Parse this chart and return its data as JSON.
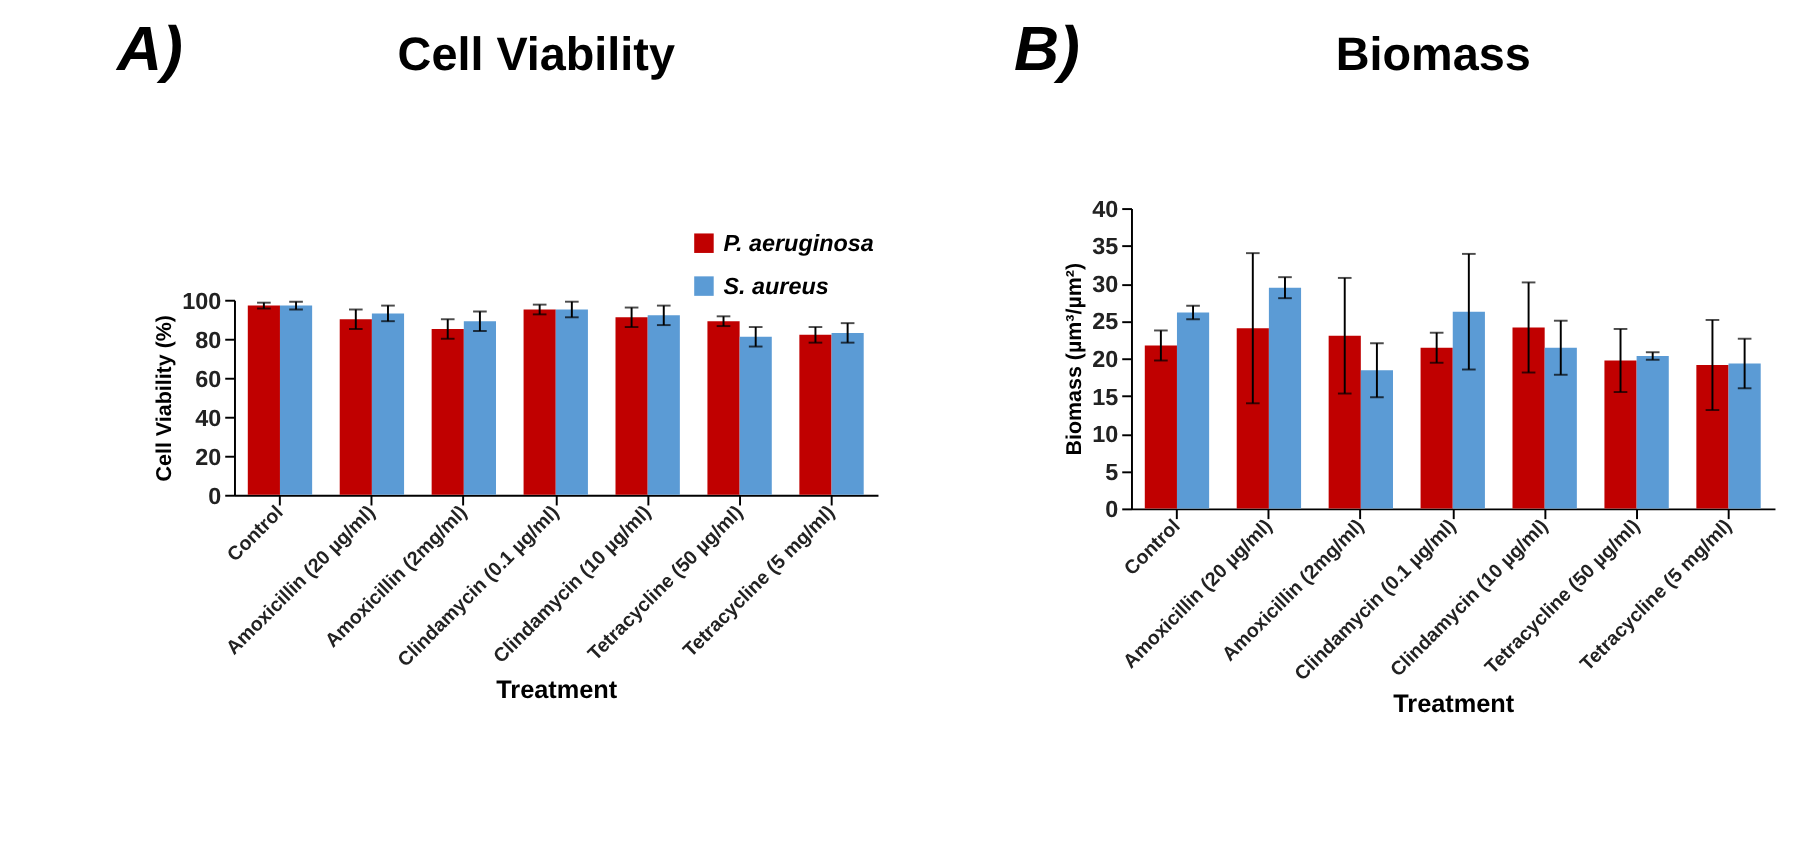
{
  "chart_data": [
    {
      "type": "bar",
      "title": "Cell Viability",
      "annotations": [
        "A)"
      ],
      "xlabel": "Treatment",
      "ylabel": "Cell Viability (%)",
      "categories": [
        "Control",
        "Amoxicillin (20 µg/ml)",
        "Amoxicillin (2mg/ml)",
        "Clindamycin (0.1 µg/ml)",
        "Clindamycin (10 µg/ml)",
        "Tetracycline (50 µg/ml)",
        "Tetracycline (5 mg/ml)"
      ],
      "series": [
        {
          "name": "P. aeruginosa",
          "color": "#c00000",
          "values": [
            97,
            90,
            85,
            95,
            91,
            89,
            82
          ],
          "errors": [
            1.5,
            5,
            5,
            2.5,
            5,
            2.5,
            4
          ]
        },
        {
          "name": "S. aureus",
          "color": "#5b9bd5",
          "values": [
            97,
            93,
            89,
            95,
            92,
            81,
            83
          ],
          "errors": [
            2,
            4,
            5,
            4,
            5,
            5,
            5
          ]
        }
      ],
      "ylim": [
        0,
        100
      ],
      "yticks": [
        0,
        20,
        40,
        60,
        80,
        100
      ],
      "grid": false,
      "legend": "top right"
    },
    {
      "type": "bar",
      "title": "Biomass",
      "annotations": [
        "B)"
      ],
      "xlabel": "Treatment",
      "ylabel": "Biomass (µm³/µm²)",
      "categories": [
        "Control",
        "Amoxicillin (20 µg/ml)",
        "Amoxicillin (2mg/ml)",
        "Clindamycin (0.1 µg/ml)",
        "Clindamycin (10 µg/ml)",
        "Tetracycline (50 µg/ml)",
        "Tetracycline (5 mg/ml)"
      ],
      "series": [
        {
          "color": "#c00000",
          "values": [
            21.7,
            24,
            23,
            21.4,
            24.1,
            19.7,
            19.1
          ],
          "errors": [
            2,
            10,
            7.7,
            2,
            6,
            4.2,
            6
          ]
        },
        {
          "color": "#5b9bd5",
          "values": [
            26.1,
            29.4,
            18.4,
            26.2,
            21.4,
            20.3,
            19.3
          ],
          "errors": [
            0.9,
            1.4,
            3.6,
            7.7,
            3.6,
            0.5,
            3.3
          ]
        }
      ],
      "ylim": [
        0,
        40
      ],
      "yticks": [
        0,
        5,
        10,
        15,
        20,
        25,
        30,
        35,
        40
      ],
      "grid": false,
      "legend": false
    }
  ]
}
